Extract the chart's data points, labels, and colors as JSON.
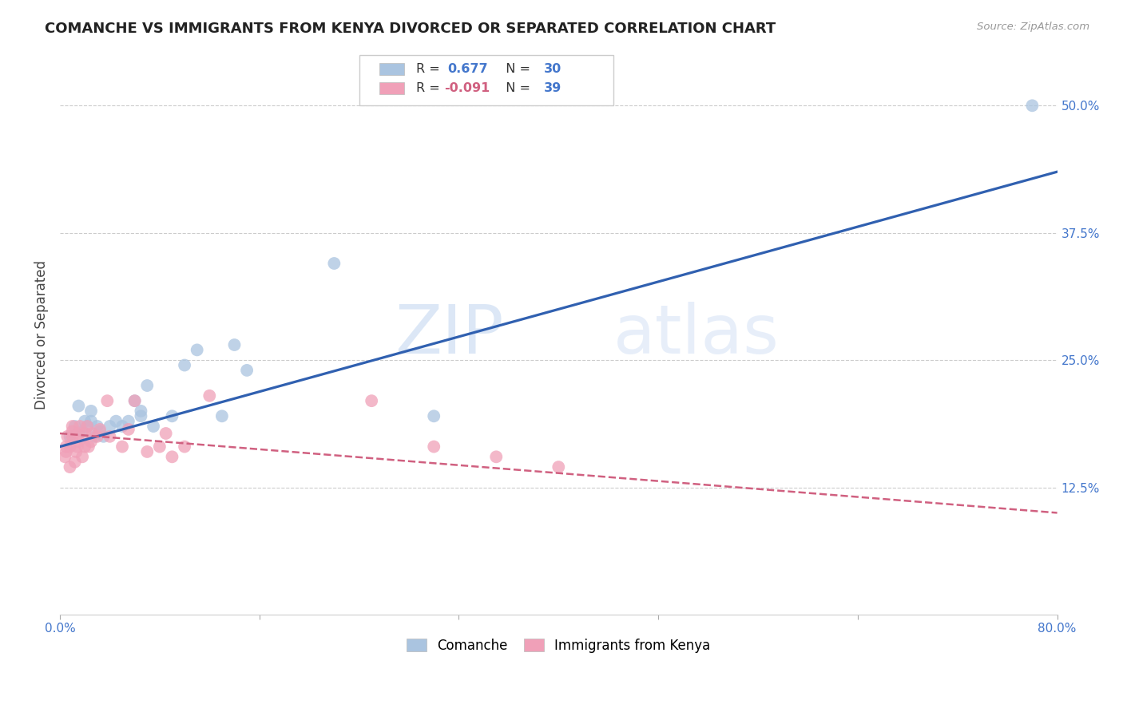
{
  "title": "COMANCHE VS IMMIGRANTS FROM KENYA DIVORCED OR SEPARATED CORRELATION CHART",
  "source": "Source: ZipAtlas.com",
  "ylabel": "Divorced or Separated",
  "xlim": [
    0.0,
    0.8
  ],
  "ylim": [
    0.0,
    0.55
  ],
  "xticks": [
    0.0,
    0.16,
    0.32,
    0.48,
    0.64,
    0.8
  ],
  "xtick_labels": [
    "0.0%",
    "",
    "",
    "",
    "",
    "80.0%"
  ],
  "ytick_labels_right": [
    "12.5%",
    "25.0%",
    "37.5%",
    "50.0%"
  ],
  "ytick_vals_right": [
    0.125,
    0.25,
    0.375,
    0.5
  ],
  "watermark_zip": "ZIP",
  "watermark_atlas": "atlas",
  "blue_color": "#aac4e0",
  "blue_line_color": "#3060b0",
  "pink_color": "#f0a0b8",
  "pink_line_color": "#d06080",
  "comanche_x": [
    0.008,
    0.012,
    0.015,
    0.018,
    0.02,
    0.022,
    0.025,
    0.025,
    0.028,
    0.03,
    0.032,
    0.035,
    0.04,
    0.045,
    0.05,
    0.055,
    0.06,
    0.065,
    0.065,
    0.07,
    0.075,
    0.09,
    0.1,
    0.11,
    0.13,
    0.14,
    0.15,
    0.22,
    0.3,
    0.78
  ],
  "comanche_y": [
    0.175,
    0.185,
    0.205,
    0.18,
    0.19,
    0.185,
    0.19,
    0.2,
    0.175,
    0.185,
    0.18,
    0.175,
    0.185,
    0.19,
    0.185,
    0.19,
    0.21,
    0.2,
    0.195,
    0.225,
    0.185,
    0.195,
    0.245,
    0.26,
    0.195,
    0.265,
    0.24,
    0.345,
    0.195,
    0.5
  ],
  "kenya_x": [
    0.004,
    0.005,
    0.005,
    0.006,
    0.008,
    0.008,
    0.01,
    0.01,
    0.01,
    0.012,
    0.013,
    0.014,
    0.015,
    0.015,
    0.016,
    0.018,
    0.02,
    0.02,
    0.022,
    0.023,
    0.025,
    0.026,
    0.03,
    0.032,
    0.038,
    0.04,
    0.05,
    0.055,
    0.06,
    0.07,
    0.08,
    0.085,
    0.09,
    0.1,
    0.12,
    0.25,
    0.3,
    0.35,
    0.4
  ],
  "kenya_y": [
    0.155,
    0.16,
    0.165,
    0.175,
    0.145,
    0.165,
    0.175,
    0.18,
    0.185,
    0.15,
    0.16,
    0.165,
    0.17,
    0.178,
    0.185,
    0.155,
    0.165,
    0.178,
    0.185,
    0.165,
    0.17,
    0.178,
    0.175,
    0.182,
    0.21,
    0.175,
    0.165,
    0.182,
    0.21,
    0.16,
    0.165,
    0.178,
    0.155,
    0.165,
    0.215,
    0.21,
    0.165,
    0.155,
    0.145
  ],
  "blue_line_x": [
    0.0,
    0.8
  ],
  "blue_line_y": [
    0.165,
    0.435
  ],
  "pink_line_x": [
    0.0,
    0.8
  ],
  "pink_line_y": [
    0.178,
    0.1
  ]
}
